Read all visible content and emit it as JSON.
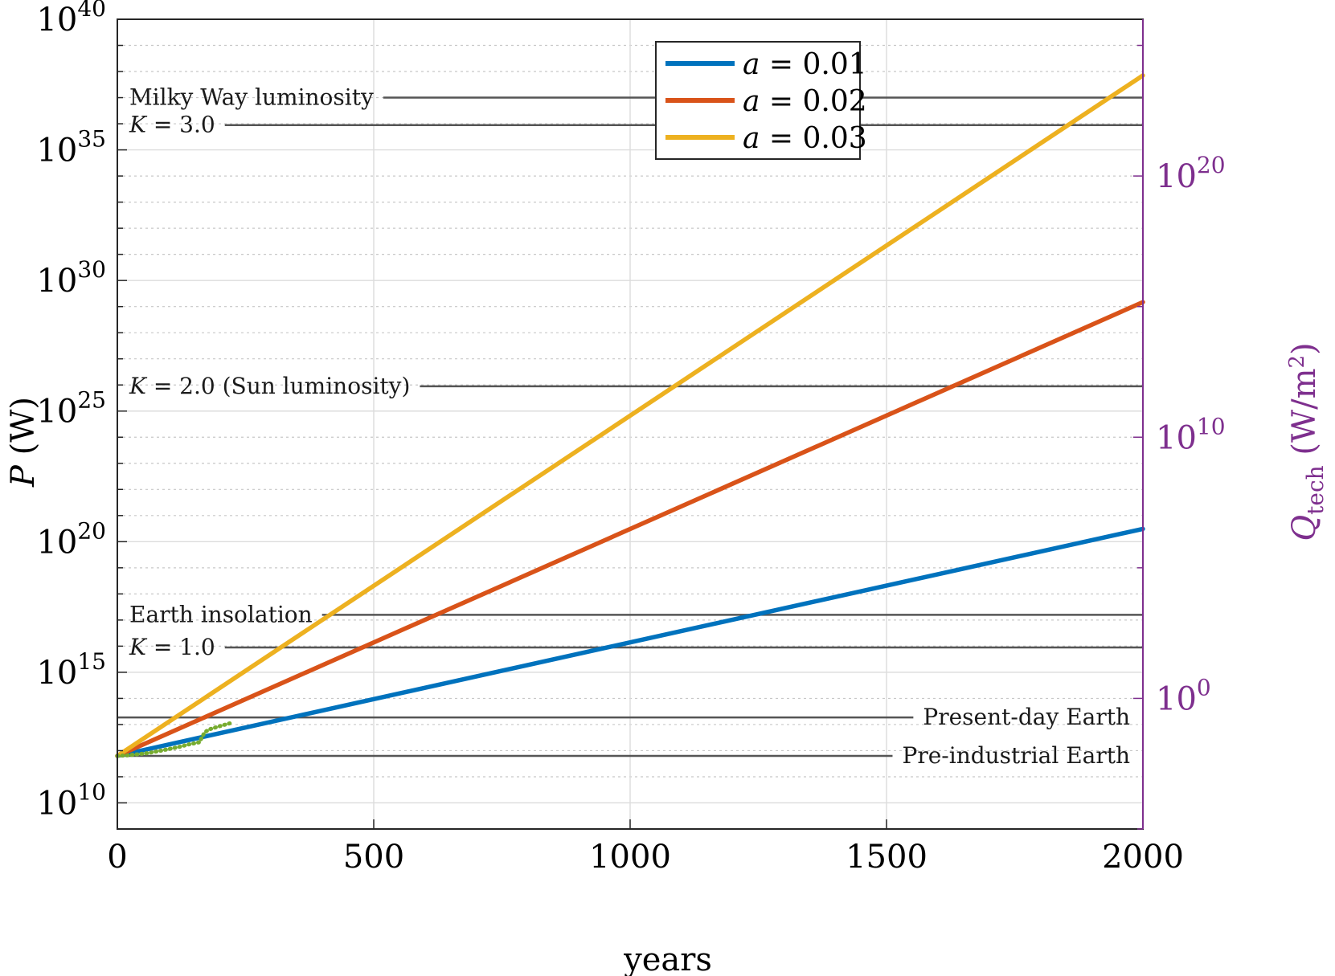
{
  "chart_data": {
    "type": "line",
    "xlabel": "years",
    "ylabel": "P (W)",
    "ylabel_right": "Q_tech (W/m²)",
    "x_scale": "linear",
    "y_scale": "log",
    "xlim": [
      0,
      2000
    ],
    "ylim_exp": [
      9,
      40
    ],
    "ylim_right_exp": [
      -5,
      26
    ],
    "x_ticks": [
      0,
      500,
      1000,
      1500,
      2000
    ],
    "y_ticks": [
      {
        "exp": 10,
        "label": "10",
        "sup": "10"
      },
      {
        "exp": 15,
        "label": "10",
        "sup": "15"
      },
      {
        "exp": 20,
        "label": "10",
        "sup": "20"
      },
      {
        "exp": 25,
        "label": "10",
        "sup": "25"
      },
      {
        "exp": 30,
        "label": "10",
        "sup": "30"
      },
      {
        "exp": 35,
        "label": "10",
        "sup": "35"
      },
      {
        "exp": 40,
        "label": "10",
        "sup": "40"
      }
    ],
    "y_ticks_right": [
      {
        "exp": 0,
        "label": "10",
        "sup": "0"
      },
      {
        "exp": 10,
        "label": "10",
        "sup": "10"
      },
      {
        "exp": 20,
        "label": "10",
        "sup": "20"
      }
    ],
    "grid": true,
    "legend_position": "top-center",
    "series": [
      {
        "name": "a = 0.01",
        "color": "#0072bd",
        "x": [
          0,
          2000
        ],
        "log10_y": [
          11.8,
          20.49
        ]
      },
      {
        "name": "a = 0.02",
        "color": "#d95319",
        "x": [
          0,
          2000
        ],
        "log10_y": [
          11.8,
          29.17
        ]
      },
      {
        "name": "a = 0.03",
        "color": "#edb120",
        "x": [
          0,
          2000
        ],
        "log10_y": [
          11.8,
          37.85
        ]
      },
      {
        "name": "",
        "color": "#77ac30",
        "style": "dotted",
        "x": [
          0,
          20,
          40,
          60,
          80,
          100,
          120,
          140,
          160,
          170,
          180,
          200,
          220
        ],
        "log10_y": [
          11.8,
          11.82,
          11.86,
          11.91,
          11.98,
          12.06,
          12.14,
          12.24,
          12.32,
          12.7,
          12.82,
          12.94,
          13.05
        ]
      }
    ],
    "reference_lines": [
      {
        "label": "Milky Way luminosity",
        "log10_y": 37.0,
        "label_side": "left"
      },
      {
        "label": "K = 3.0",
        "log10_y": 35.95,
        "label_side": "left"
      },
      {
        "label": "K = 2.0 (Sun luminosity)",
        "log10_y": 25.95,
        "label_side": "left"
      },
      {
        "label": "Earth insolation",
        "log10_y": 17.2,
        "label_side": "left"
      },
      {
        "label": "K = 1.0",
        "log10_y": 15.95,
        "label_side": "left"
      },
      {
        "label": "Present-day Earth",
        "log10_y": 13.27,
        "label_side": "right"
      },
      {
        "label": "Pre-industrial Earth",
        "log10_y": 11.8,
        "label_side": "right"
      }
    ]
  }
}
